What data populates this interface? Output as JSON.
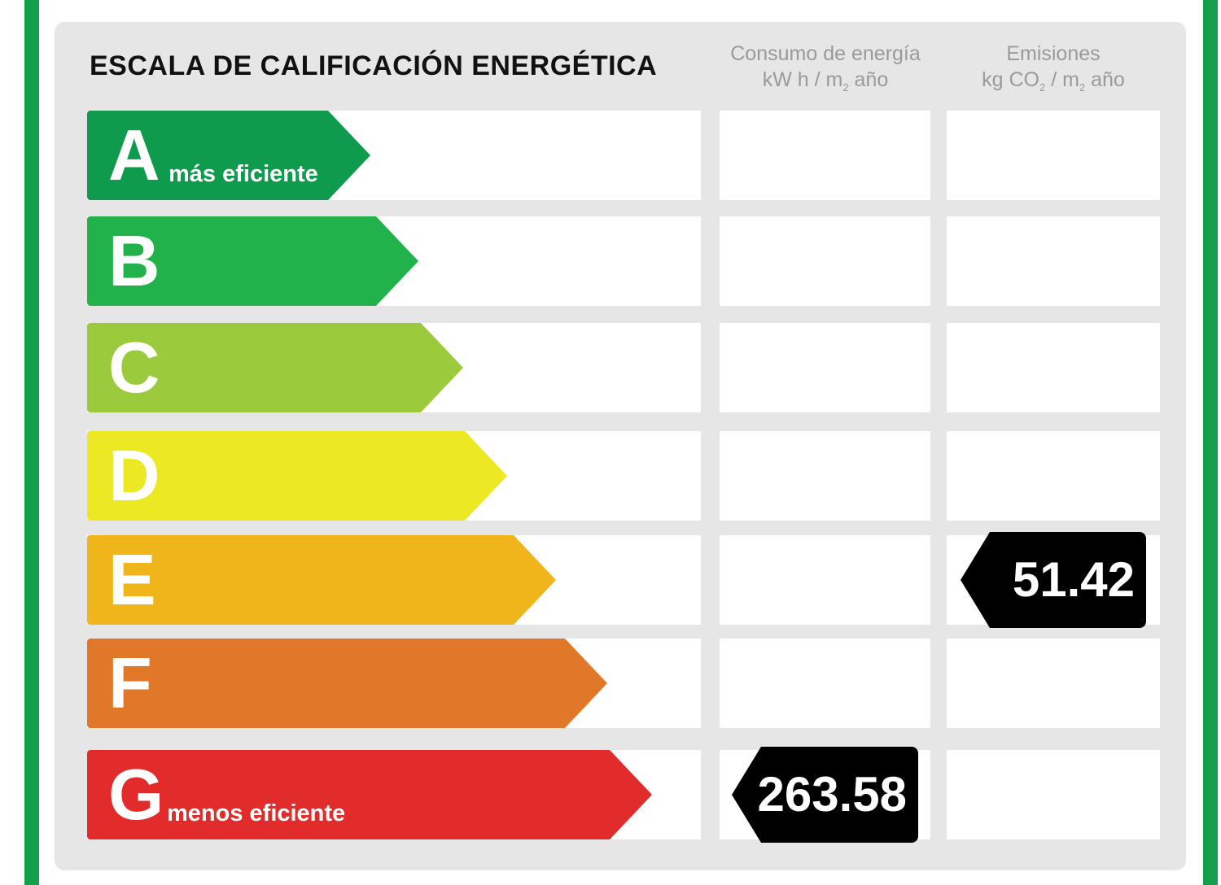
{
  "title": "ESCALA DE CALIFICACIÓN ENERGÉTICA",
  "columns": {
    "energy": {
      "line1": "Consumo de energía",
      "line2_a": "kW h / m",
      "line2_sub": "2",
      "line2_b": " año"
    },
    "emissions": {
      "line1": "Emisiones",
      "line2_a": "kg CO",
      "line2_sub": "2",
      "line2_mid": " / m",
      "line2_sub2": "2",
      "line2_b": " año"
    }
  },
  "scale": [
    {
      "letter": "A",
      "label": "más eficiente",
      "color": "#0f9b4e"
    },
    {
      "letter": "B",
      "label": "",
      "color": "#22b24b"
    },
    {
      "letter": "C",
      "label": "",
      "color": "#9bcb3c"
    },
    {
      "letter": "D",
      "label": "",
      "color": "#ece924"
    },
    {
      "letter": "E",
      "label": "",
      "color": "#efb51b"
    },
    {
      "letter": "F",
      "label": "",
      "color": "#e07729"
    },
    {
      "letter": "G",
      "label": "menos eficiente",
      "color": "#e12c2b"
    }
  ],
  "ratings": {
    "energy": {
      "class": "G",
      "value": "263.58"
    },
    "emissions": {
      "class": "E",
      "value": "51.42"
    }
  },
  "frame_color": "#13a04a",
  "tag_color": "#000000"
}
